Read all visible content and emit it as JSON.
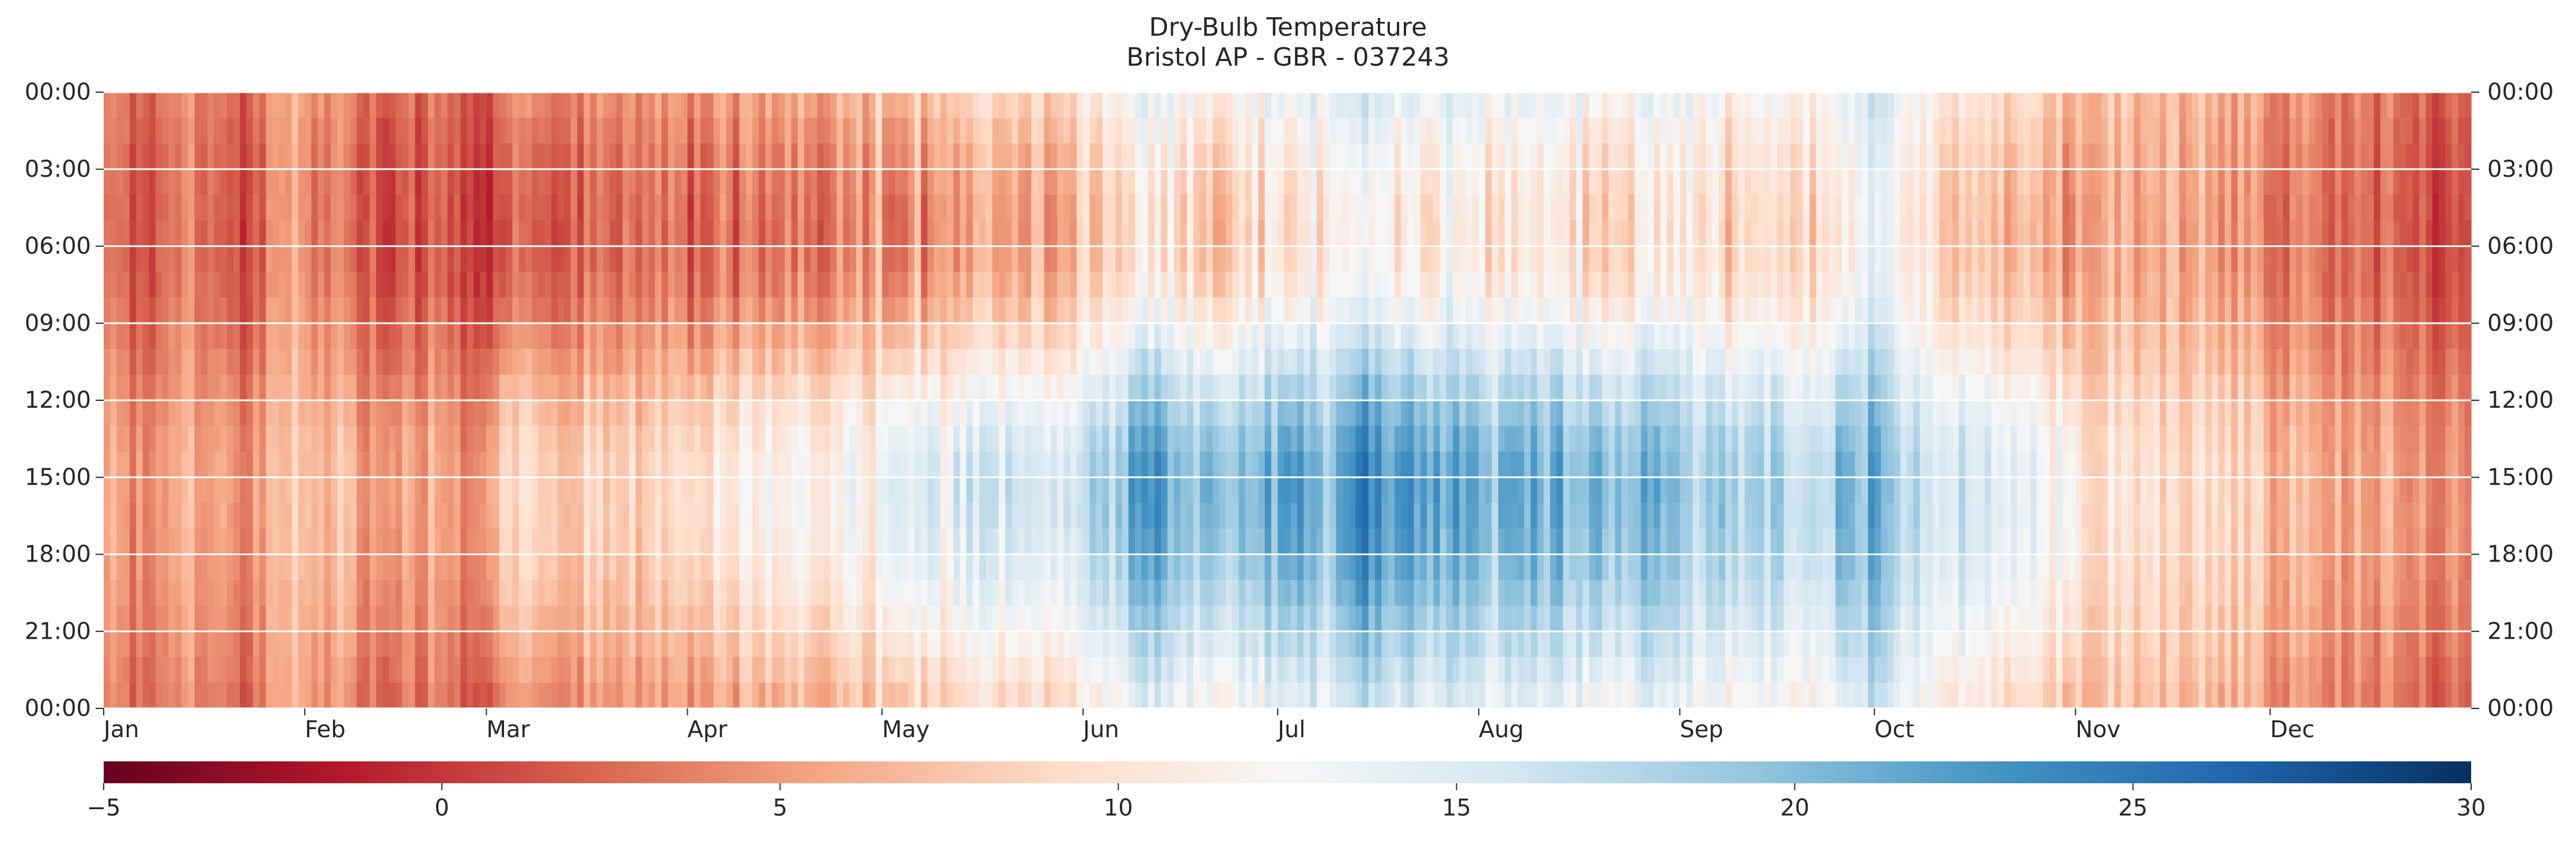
{
  "chart_data": {
    "type": "heatmap",
    "title": "Dry-Bulb Temperature",
    "subtitle": "Bristol AP - GBR - 037243",
    "x_ticks": [
      "Jan",
      "Feb",
      "Mar",
      "Apr",
      "May",
      "Jun",
      "Jul",
      "Aug",
      "Sep",
      "Oct",
      "Nov",
      "Dec"
    ],
    "x_tick_day_of_year": [
      1,
      32,
      60,
      91,
      121,
      152,
      182,
      213,
      244,
      274,
      305,
      335
    ],
    "days_in_year": 365,
    "y_ticks": [
      "00:00",
      "03:00",
      "06:00",
      "09:00",
      "12:00",
      "15:00",
      "18:00",
      "21:00",
      "00:00"
    ],
    "y_range_hours": [
      0,
      24
    ],
    "grid": "horizontal white lines at every 3 hours",
    "colorbar": {
      "colormap": "RdBu",
      "range": [
        -5,
        30
      ],
      "ticks": [
        "−5",
        "0",
        "5",
        "10",
        "15",
        "20",
        "25",
        "30"
      ],
      "tick_values": [
        -5,
        0,
        5,
        10,
        15,
        20,
        25,
        30
      ],
      "colormap_hex": [
        "#67001f",
        "#b2182b",
        "#d6604d",
        "#f4a582",
        "#fddbc7",
        "#f7f7f7",
        "#d1e5f0",
        "#92c5de",
        "#4393c3",
        "#2166ac",
        "#053061"
      ]
    },
    "daily_mean_temperature_by_week": [
      3.5,
      3.0,
      4.5,
      2.5,
      6.5,
      5.0,
      3.5,
      4.0,
      2.0,
      4.5,
      5.0,
      6.0,
      5.5,
      6.5,
      7.0,
      8.0,
      7.5,
      9.0,
      9.5,
      10.0,
      11.0,
      10.5,
      13.0,
      16.5,
      14.0,
      13.5,
      17.0,
      15.5,
      19.5,
      15.0,
      16.5,
      15.0,
      15.0,
      14.0,
      15.5,
      14.0,
      13.0,
      13.5,
      14.0,
      18.0,
      12.5,
      11.0,
      10.0,
      9.0,
      8.0,
      7.0,
      7.5,
      6.5,
      4.5,
      5.0,
      4.0,
      3.0,
      2.5
    ],
    "diurnal_amplitude_by_month": [
      1.5,
      2.0,
      3.0,
      4.0,
      5.0,
      5.5,
      5.5,
      5.0,
      4.5,
      3.5,
      2.0,
      1.5
    ],
    "daily_minimum_hour": 5,
    "daily_maximum_hour": 15
  }
}
